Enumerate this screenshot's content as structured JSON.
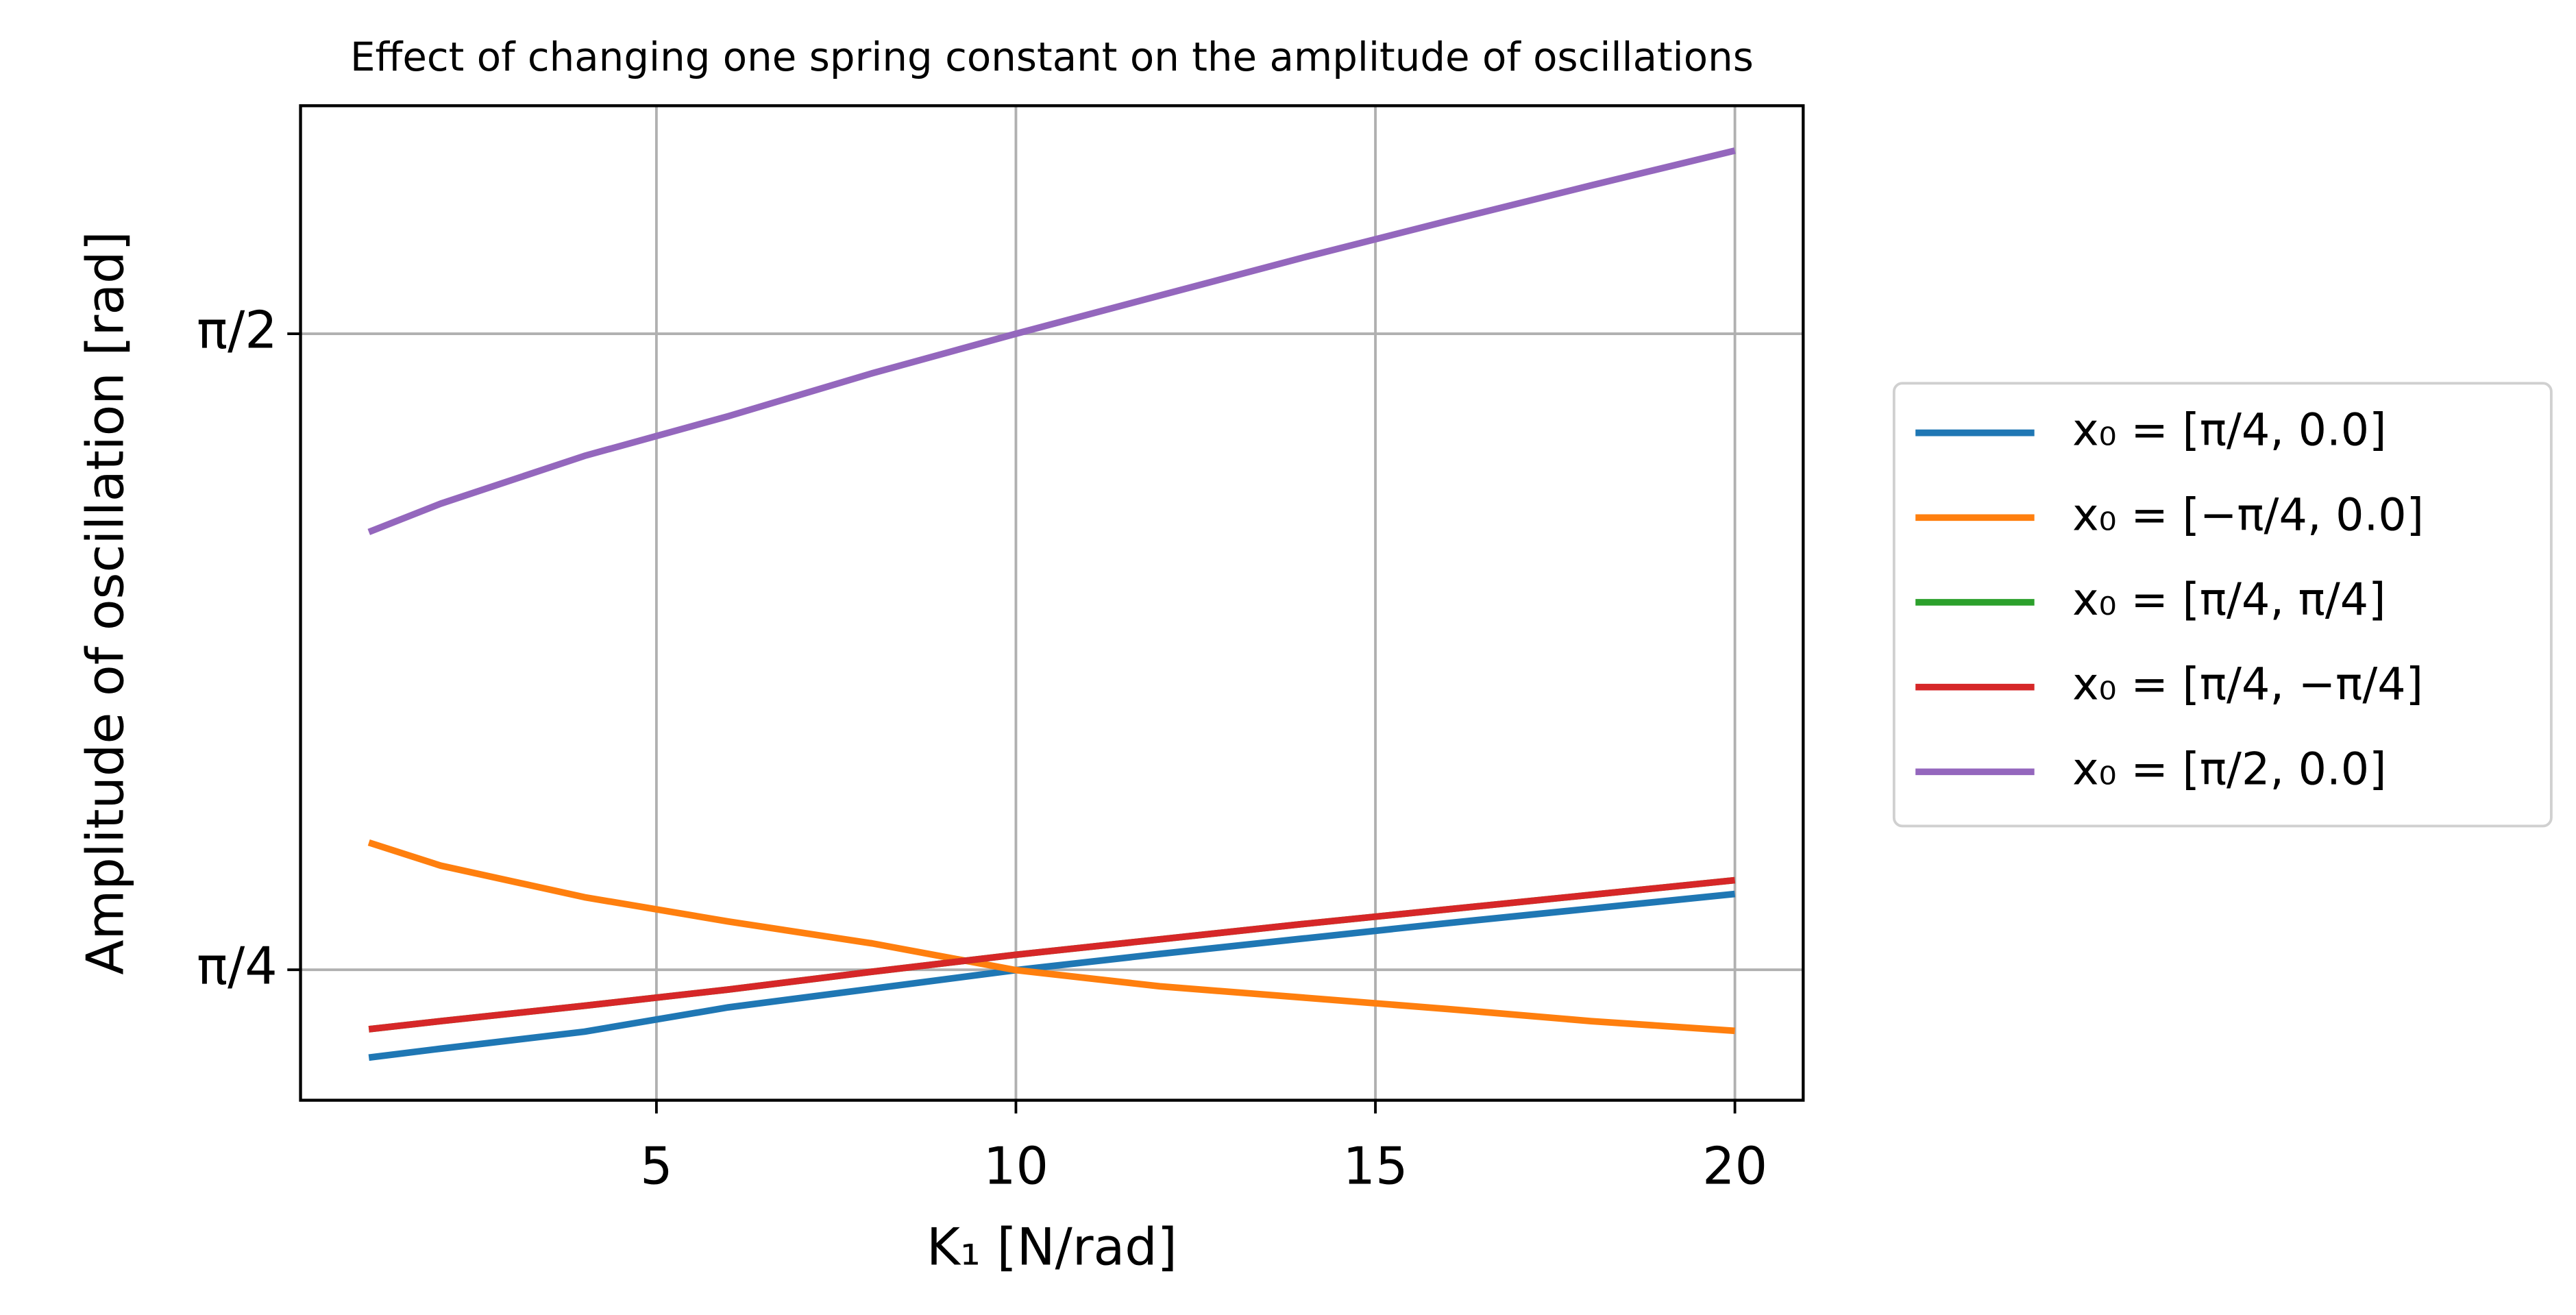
{
  "chart_data": {
    "type": "line",
    "title": "Effect of changing one spring constant on the amplitude of oscillations",
    "xlabel": "K₁ [N/rad]",
    "ylabel": "Amplitude of oscillation [rad]",
    "x": [
      1,
      2,
      4,
      6,
      8,
      10,
      12,
      14,
      16,
      18,
      20
    ],
    "series": [
      {
        "name": "x₀ = [π/4, 0.0]",
        "color": "#1f77b4",
        "values": [
          0.677,
          0.688,
          0.709,
          0.739,
          0.762,
          0.785,
          0.805,
          0.824,
          0.843,
          0.861,
          0.879
        ]
      },
      {
        "name": "x₀ = [−π/4, 0.0]",
        "color": "#ff7f0e",
        "values": [
          0.9425,
          0.914,
          0.875,
          0.845,
          0.818,
          0.785,
          0.765,
          0.751,
          0.737,
          0.722,
          0.71
        ]
      },
      {
        "name": "x₀ = [π/4, π/4]",
        "color": "#2ca02c",
        "values": [
          0.712,
          0.722,
          0.741,
          0.761,
          0.783,
          0.804,
          0.823,
          0.842,
          0.86,
          0.878,
          0.896
        ]
      },
      {
        "name": "x₀ = [π/4, −π/4]",
        "color": "#d62728",
        "values": [
          0.712,
          0.722,
          0.741,
          0.761,
          0.783,
          0.804,
          0.823,
          0.842,
          0.86,
          0.878,
          0.896
        ]
      },
      {
        "name": "x₀ = [π/2, 0.0]",
        "color": "#9467bd",
        "values": [
          1.326,
          1.361,
          1.42,
          1.469,
          1.522,
          1.5708,
          1.618,
          1.665,
          1.71,
          1.754,
          1.797
        ]
      }
    ],
    "xlim": [
      0.05,
      20.95
    ],
    "xticks": [
      5,
      10,
      15,
      20
    ],
    "ylim": [
      0.6243,
      1.8524
    ],
    "yticks": [
      {
        "value": 0.7854,
        "label": "π/4"
      },
      {
        "value": 1.5708,
        "label": "π/2"
      }
    ],
    "grid": true,
    "legend": "outside right"
  }
}
